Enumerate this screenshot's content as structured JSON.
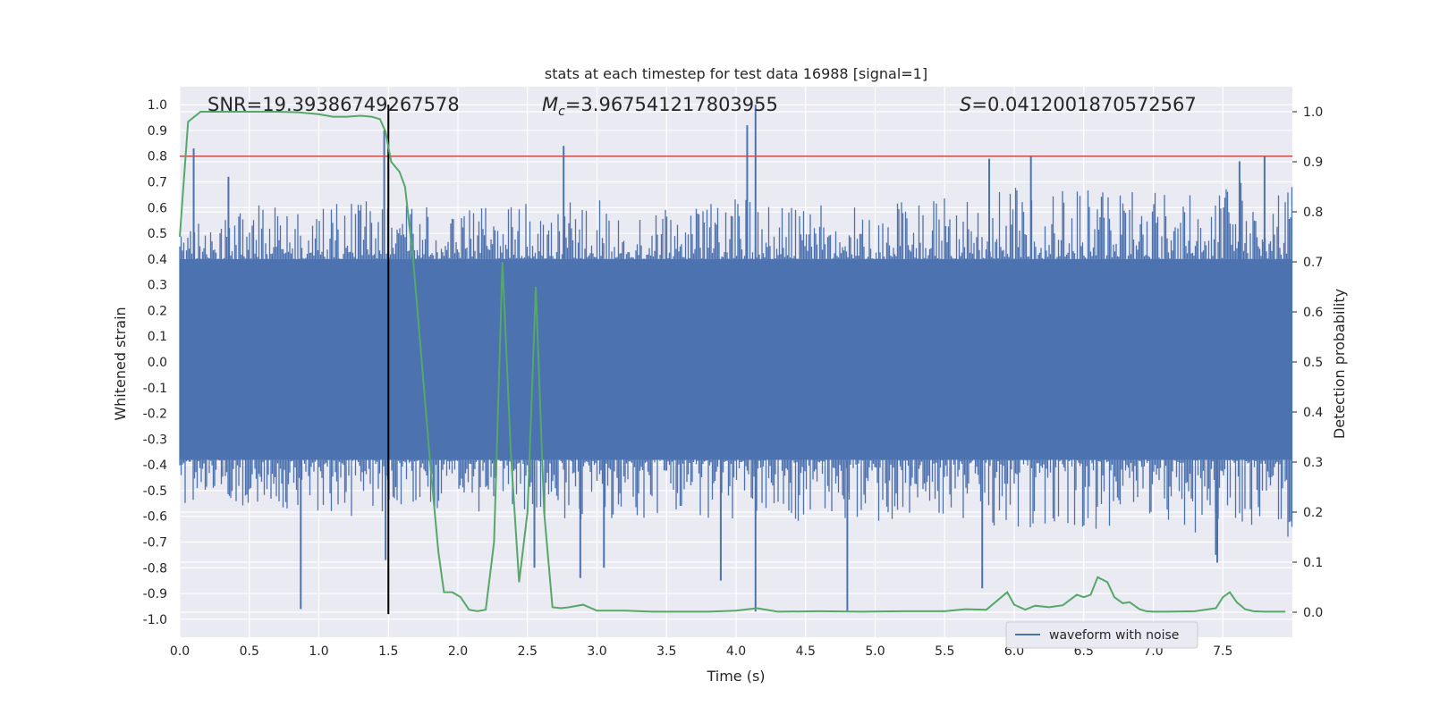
{
  "chart_data": {
    "type": "line",
    "title": "stats at each timestep for test data 16988 [signal=1]",
    "xlabel": "Time (s)",
    "ylabel": "Whitened strain",
    "y2label": "Detection probability",
    "xlim": [
      0.0,
      8.0
    ],
    "ylim": [
      -1.07,
      1.07
    ],
    "y2lim": [
      -0.05,
      1.05
    ],
    "x_ticks": [
      "0.0",
      "0.5",
      "1.0",
      "1.5",
      "2.0",
      "2.5",
      "3.0",
      "3.5",
      "4.0",
      "4.5",
      "5.0",
      "5.5",
      "6.0",
      "6.5",
      "7.0",
      "7.5"
    ],
    "y_ticks": [
      "1.0",
      "0.9",
      "0.8",
      "0.7",
      "0.6",
      "0.5",
      "0.4",
      "0.3",
      "0.2",
      "0.1",
      "0.0",
      "-0.1",
      "-0.2",
      "-0.3",
      "-0.4",
      "-0.5",
      "-0.6",
      "-0.7",
      "-0.8",
      "-0.9",
      "-1.0"
    ],
    "y2_ticks": [
      "1.0",
      "0.9",
      "0.8",
      "0.7",
      "0.6",
      "0.5",
      "0.4",
      "0.3",
      "0.2",
      "0.1",
      "0.0"
    ],
    "grid": true,
    "annotations": {
      "snr": "SNR=19.39386749267578",
      "mc_symbol": "M",
      "mc_sub": "c",
      "mc_value": "=3.967541217803955",
      "s_symbol": "S",
      "s_value": "=0.0412001870572567"
    },
    "legend": {
      "position": "lower-right",
      "label": "waveform with noise"
    },
    "colors": {
      "background": "#eaeaf2",
      "waveform": "#4c72b0",
      "probability": "#55a868",
      "threshold": "#c44e52",
      "marker": "#000000"
    },
    "threshold_y": 0.8,
    "marker_x": 1.5,
    "waveform": {
      "band": [
        -0.38,
        0.4
      ],
      "envelope": {
        "x": [
          0.0,
          0.5,
          1.0,
          1.45,
          1.5,
          2.0,
          2.5,
          3.0,
          3.5,
          4.0,
          4.5,
          5.0,
          5.5,
          6.0,
          6.5,
          7.0,
          7.5,
          8.0
        ],
        "max": [
          0.6,
          0.62,
          0.62,
          0.65,
          0.62,
          0.6,
          0.62,
          0.63,
          0.6,
          0.64,
          0.62,
          0.62,
          0.65,
          0.68,
          0.7,
          0.7,
          0.7,
          0.7
        ],
        "min": [
          -0.55,
          -0.58,
          -0.6,
          -0.62,
          -0.55,
          -0.6,
          -0.62,
          -0.62,
          -0.6,
          -0.62,
          -0.62,
          -0.62,
          -0.62,
          -0.65,
          -0.65,
          -0.65,
          -0.68,
          -0.68
        ]
      },
      "spikes": [
        {
          "x": 0.1,
          "y": 0.83
        },
        {
          "x": 0.35,
          "y": 0.72
        },
        {
          "x": 0.87,
          "y": -0.96
        },
        {
          "x": 1.47,
          "y": 0.9
        },
        {
          "x": 1.48,
          "y": -0.77
        },
        {
          "x": 2.55,
          "y": -0.8
        },
        {
          "x": 2.76,
          "y": 0.84
        },
        {
          "x": 2.88,
          "y": -0.84
        },
        {
          "x": 3.05,
          "y": -0.8
        },
        {
          "x": 3.89,
          "y": -0.85
        },
        {
          "x": 4.08,
          "y": 0.92
        },
        {
          "x": 4.14,
          "y": 1.0
        },
        {
          "x": 4.14,
          "y": -0.97
        },
        {
          "x": 4.8,
          "y": -0.97
        },
        {
          "x": 5.77,
          "y": -0.88
        },
        {
          "x": 5.82,
          "y": 0.79
        },
        {
          "x": 6.12,
          "y": 0.8
        },
        {
          "x": 7.45,
          "y": -0.75
        },
        {
          "x": 7.8,
          "y": 0.8
        },
        {
          "x": 7.46,
          "y": -0.78
        },
        {
          "x": 7.62,
          "y": 0.78
        }
      ]
    },
    "probability": {
      "x": [
        0.0,
        0.06,
        0.15,
        0.25,
        0.4,
        0.55,
        0.7,
        0.85,
        1.0,
        1.1,
        1.2,
        1.3,
        1.38,
        1.44,
        1.48,
        1.52,
        1.58,
        1.62,
        1.68,
        1.74,
        1.8,
        1.86,
        1.9,
        1.96,
        2.02,
        2.08,
        2.14,
        2.2,
        2.26,
        2.32,
        2.38,
        2.44,
        2.5,
        2.56,
        2.62,
        2.68,
        2.74,
        2.8,
        2.9,
        3.0,
        3.2,
        3.4,
        3.6,
        3.8,
        4.0,
        4.15,
        4.3,
        4.6,
        4.9,
        5.2,
        5.5,
        5.65,
        5.8,
        5.95,
        6.0,
        6.08,
        6.15,
        6.25,
        6.35,
        6.45,
        6.5,
        6.55,
        6.6,
        6.67,
        6.72,
        6.78,
        6.83,
        6.9,
        6.95,
        7.0,
        7.1,
        7.3,
        7.45,
        7.5,
        7.55,
        7.6,
        7.66,
        7.72,
        7.8,
        7.95
      ],
      "y": [
        0.75,
        0.98,
        1.0,
        1.0,
        1.0,
        1.0,
        1.0,
        0.999,
        0.995,
        0.99,
        0.99,
        0.992,
        0.99,
        0.985,
        0.96,
        0.9,
        0.88,
        0.85,
        0.7,
        0.5,
        0.3,
        0.12,
        0.04,
        0.04,
        0.03,
        0.005,
        0.002,
        0.005,
        0.14,
        0.7,
        0.32,
        0.06,
        0.2,
        0.65,
        0.2,
        0.01,
        0.008,
        0.01,
        0.015,
        0.003,
        0.003,
        0.001,
        0.001,
        0.001,
        0.003,
        0.008,
        0.001,
        0.002,
        0.001,
        0.002,
        0.002,
        0.006,
        0.005,
        0.04,
        0.015,
        0.005,
        0.013,
        0.01,
        0.014,
        0.035,
        0.03,
        0.035,
        0.07,
        0.06,
        0.03,
        0.018,
        0.02,
        0.006,
        0.002,
        0.001,
        0.001,
        0.002,
        0.008,
        0.03,
        0.04,
        0.02,
        0.006,
        0.002,
        0.001,
        0.001
      ]
    }
  }
}
